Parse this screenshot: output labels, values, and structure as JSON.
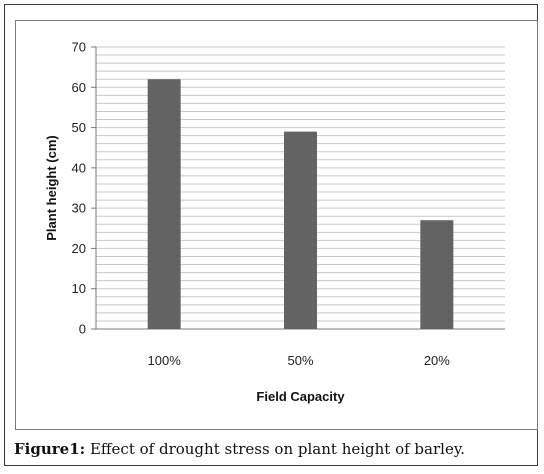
{
  "chart_data": {
    "type": "bar",
    "categories": [
      "100%",
      "50%",
      "20%"
    ],
    "values": [
      62,
      49,
      27
    ],
    "xlabel": "Field Capacity",
    "ylabel": "Plant height (cm)",
    "ylim": [
      0,
      70
    ],
    "yticks": [
      0,
      10,
      20,
      30,
      40,
      50,
      60,
      70
    ],
    "grid": true,
    "bar_color": "#636363",
    "grid_color": "#c8c8c8"
  },
  "caption": {
    "label": "Figure1:",
    "text": " Effect of drought stress on plant height of barley."
  }
}
